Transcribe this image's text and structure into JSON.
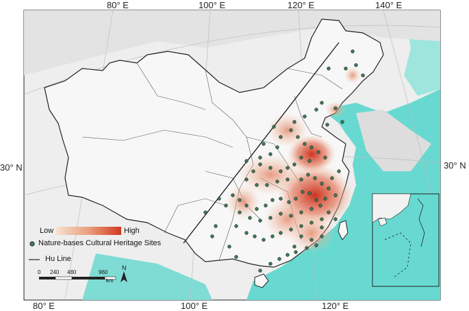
{
  "graticule": {
    "top": [
      "80° E",
      "100° E",
      "120° E",
      "140° E"
    ],
    "bottom": [
      "80° E",
      "100° E",
      "120° E"
    ],
    "left_lat": "30° N",
    "right_lat": "30° N"
  },
  "legend": {
    "low_label": "Low",
    "high_label": "High",
    "sites_label": "Nature-bases Cultural Heritage Sites",
    "hu_line_label": "Hu Line",
    "gradient_colors": [
      "#f6e1cf",
      "#e9a07e",
      "#d23a20"
    ],
    "site_color": "#3f7f57",
    "hu_line_color": "#222222"
  },
  "scale_bar": {
    "ticks": [
      "0",
      "240",
      "480",
      "",
      "960"
    ],
    "unit": "km"
  },
  "north_arrow": {
    "label": "N"
  },
  "colors": {
    "sea": "#68d9d0",
    "land": "#e6e6e6",
    "boundary": "#222222",
    "density_low": "#f2c3a5",
    "density_high": "#c92a14"
  },
  "icons": [
    "north-arrow-icon",
    "site-marker-icon"
  ]
}
